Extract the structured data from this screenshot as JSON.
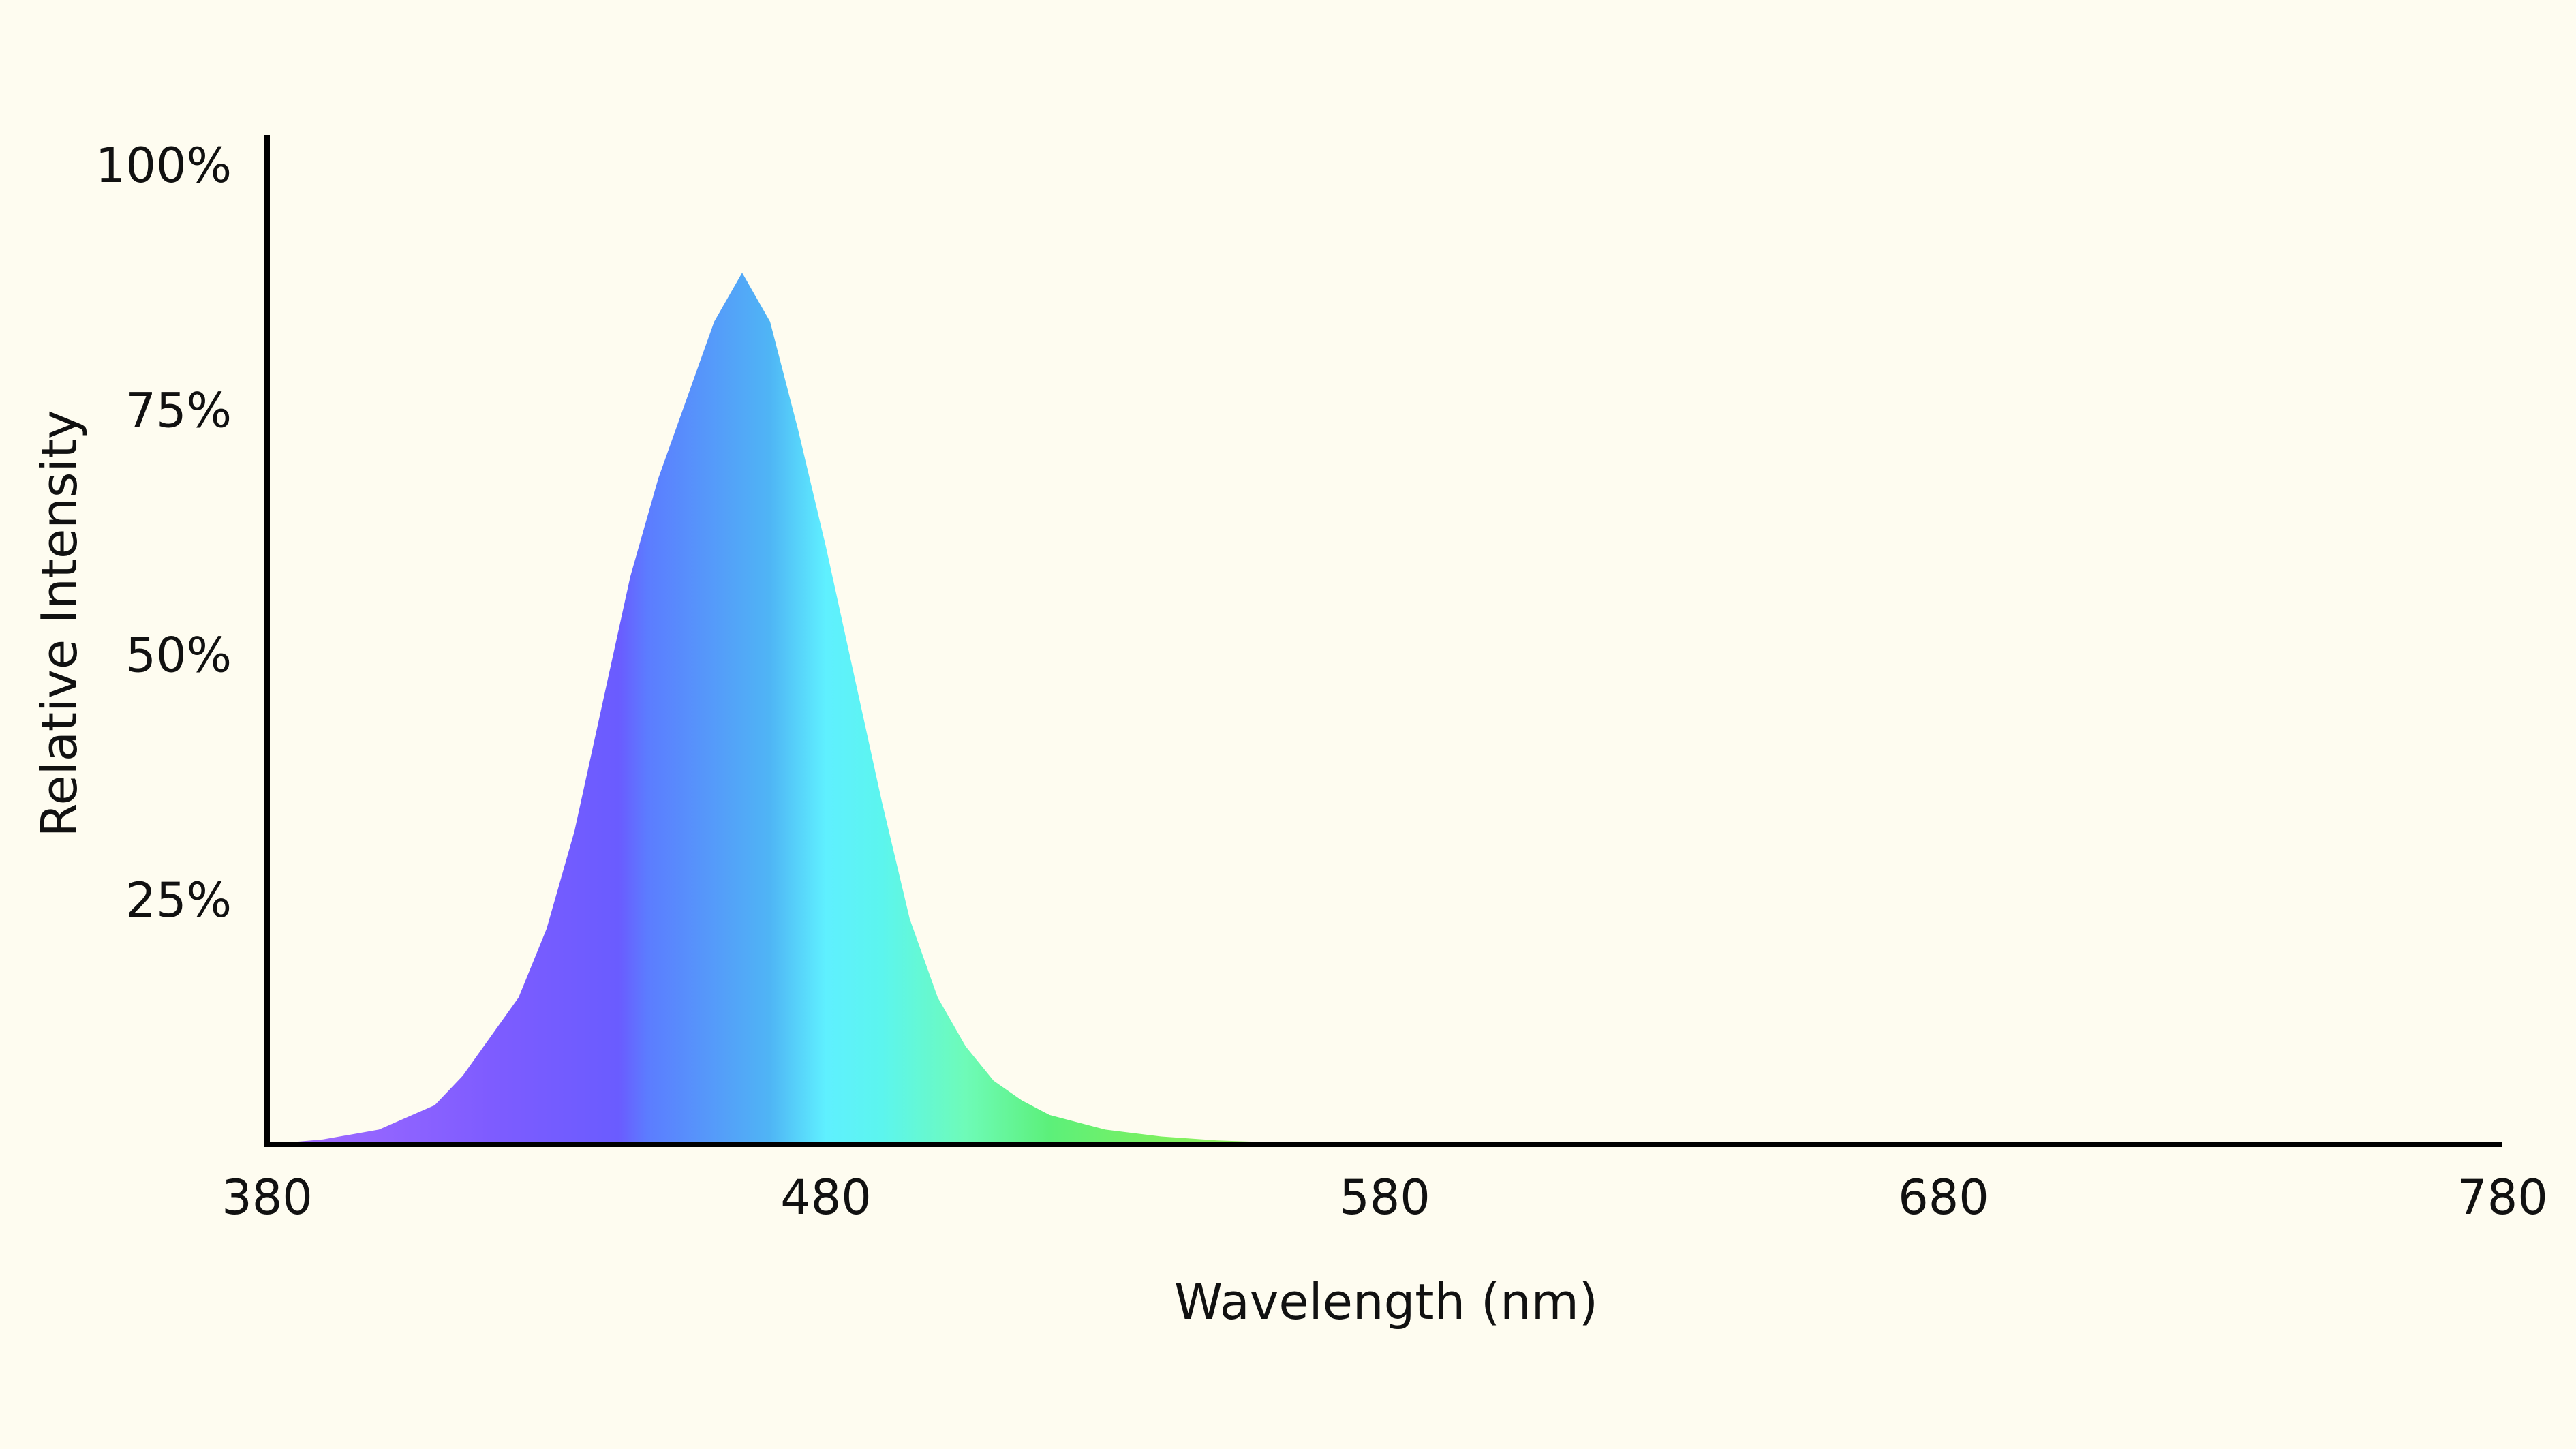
{
  "chart_data": {
    "type": "area",
    "title": "",
    "xlabel": "Wavelength (nm)",
    "ylabel": "Relative Intensity",
    "xlim": [
      380,
      780
    ],
    "ylim": [
      0,
      100
    ],
    "x_ticks": [
      380,
      480,
      580,
      680,
      780
    ],
    "x_tick_labels": [
      "380",
      "480",
      "580",
      "680",
      "780"
    ],
    "y_ticks": [
      25,
      50,
      75,
      100
    ],
    "y_tick_labels": [
      "25%",
      "50%",
      "75%",
      "100%"
    ],
    "grid": false,
    "legend": "none",
    "series": [
      {
        "x": [
          380,
          390,
          400,
          410,
          415,
          420,
          425,
          430,
          435,
          440,
          445,
          450,
          455,
          460,
          465,
          470,
          475,
          480,
          485,
          490,
          495,
          500,
          505,
          510,
          515,
          520,
          530,
          540,
          550,
          560,
          570,
          580
        ],
        "y": [
          0,
          0.5,
          1.5,
          4,
          7,
          11,
          15,
          22,
          32,
          45,
          58,
          68,
          76,
          84,
          89,
          84,
          73,
          61,
          48,
          35,
          23,
          15,
          10,
          6.5,
          4.5,
          3,
          1.5,
          0.8,
          0.4,
          0.2,
          0.1,
          0
        ]
      }
    ],
    "fill_gradient": [
      {
        "wavelength": 380,
        "color": "#a66dff"
      },
      {
        "wavelength": 420,
        "color": "#7e5cff"
      },
      {
        "wavelength": 443,
        "color": "#6a5cff"
      },
      {
        "wavelength": 448,
        "color": "#5c7cff"
      },
      {
        "wavelength": 470,
        "color": "#4fb5f5"
      },
      {
        "wavelength": 480,
        "color": "#5ff0ff"
      },
      {
        "wavelength": 490,
        "color": "#5cf5ee"
      },
      {
        "wavelength": 505,
        "color": "#6efbb8"
      },
      {
        "wavelength": 520,
        "color": "#5cf07a"
      },
      {
        "wavelength": 540,
        "color": "#7cf060"
      },
      {
        "wavelength": 580,
        "color": "#b8f060"
      }
    ]
  }
}
